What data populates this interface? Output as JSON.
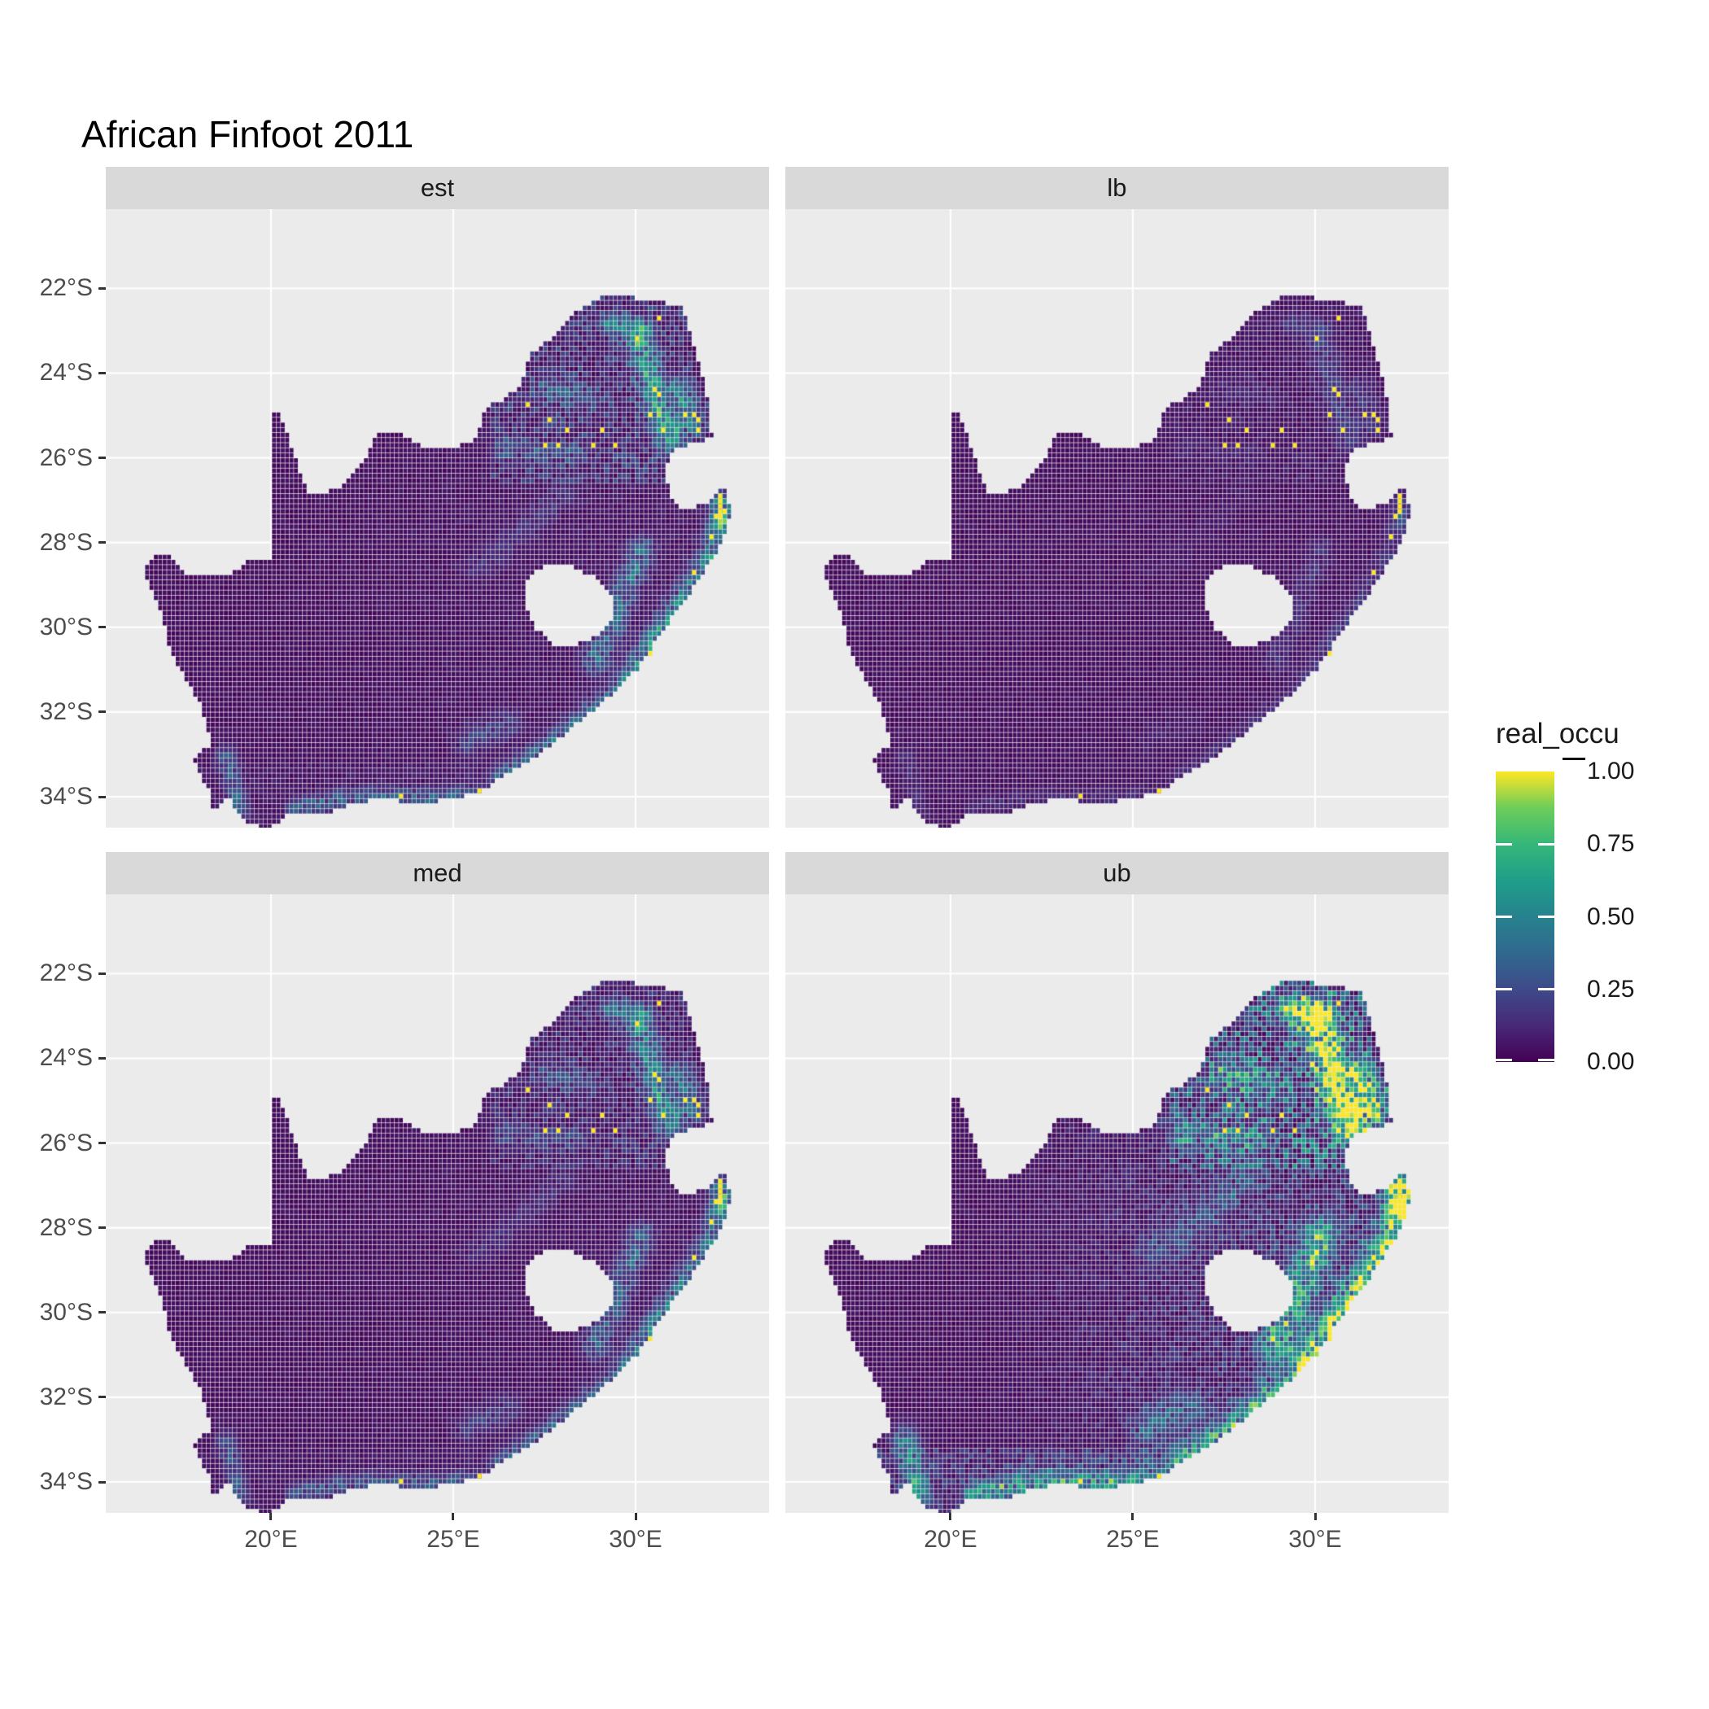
{
  "title": "African Finfoot 2011",
  "legend": {
    "title": "real_occu",
    "labels": [
      "1.00",
      "0.75",
      "0.50",
      "0.25",
      "0.00"
    ],
    "breaks": [
      1.0,
      0.75,
      0.5,
      0.25,
      0.0
    ]
  },
  "facets": [
    {
      "id": "est",
      "label": "est",
      "factor": 1.0,
      "ne": 0.2,
      "east": 0.05,
      "south": 0.06,
      "wmul": 1.0
    },
    {
      "id": "lb",
      "label": "lb",
      "factor": 0.28,
      "ne": 0.05,
      "east": 0.012,
      "south": 0.015,
      "wmul": 1.0
    },
    {
      "id": "med",
      "label": "med",
      "factor": 0.85,
      "ne": 0.14,
      "east": 0.035,
      "south": 0.045,
      "wmul": 1.0
    },
    {
      "id": "ub",
      "label": "ub",
      "factor": 1.65,
      "ne": 0.32,
      "east": 0.3,
      "south": 0.24,
      "wmul": 1.35
    }
  ],
  "axes": {
    "x_ticks": [
      {
        "lon": 20,
        "label": "20°E"
      },
      {
        "lon": 25,
        "label": "25°E"
      },
      {
        "lon": 30,
        "label": "30°E"
      }
    ],
    "y_ticks": [
      {
        "lat": -22,
        "label": "22°S"
      },
      {
        "lat": -24,
        "label": "24°S"
      },
      {
        "lat": -26,
        "label": "26°S"
      },
      {
        "lat": -28,
        "label": "28°S"
      },
      {
        "lat": -30,
        "label": "30°S"
      },
      {
        "lat": -32,
        "label": "32°S"
      },
      {
        "lat": -34,
        "label": "34°S"
      }
    ]
  },
  "colors": {
    "panel_bg": "#EBEBEB",
    "strip_bg": "#D9D9D9",
    "grid": "#FFFFFF",
    "axis_text": "#4D4D4D",
    "strip_text": "#1A1A1A",
    "tick": "#333333",
    "viridis": [
      [
        0.0,
        "#440154"
      ],
      [
        0.125,
        "#482878"
      ],
      [
        0.25,
        "#3E4A89"
      ],
      [
        0.375,
        "#31688E"
      ],
      [
        0.5,
        "#26828E"
      ],
      [
        0.625,
        "#1F9E89"
      ],
      [
        0.75,
        "#35B779"
      ],
      [
        0.875,
        "#6DCD59"
      ],
      [
        1.0,
        "#FDE725"
      ]
    ]
  },
  "chart_data": {
    "type": "heatmap",
    "subtype": "faceted-raster-occupancy-map",
    "title": "African Finfoot 2011",
    "facet_labels": [
      "est",
      "lb",
      "med",
      "ub"
    ],
    "legend_title": "real_occu",
    "value_range": [
      0.0,
      1.0
    ],
    "legend_breaks": [
      0.0,
      0.25,
      0.5,
      0.75,
      1.0
    ],
    "x_axis": {
      "ticks": [
        20,
        25,
        30
      ],
      "labels": [
        "20°E",
        "25°E",
        "30°E"
      ]
    },
    "y_axis": {
      "ticks": [
        -22,
        -24,
        -26,
        -28,
        -30,
        -32,
        -34
      ],
      "labels": [
        "22°S",
        "24°S",
        "26°S",
        "28°S",
        "30°S",
        "32°S",
        "34°S"
      ]
    },
    "lon_range": [
      15.47,
      33.66
    ],
    "lat_range": [
      -34.73,
      -20.13
    ],
    "cell_deg": 0.12,
    "region": "South Africa",
    "outline": [
      [
        16.45,
        -28.63
      ],
      [
        17.05,
        -28.2
      ],
      [
        17.65,
        -28.75
      ],
      [
        18.75,
        -28.8
      ],
      [
        19.5,
        -28.4
      ],
      [
        19.98,
        -28.35
      ],
      [
        19.98,
        -24.82
      ],
      [
        20.25,
        -24.95
      ],
      [
        20.9,
        -26.55
      ],
      [
        21.05,
        -26.9
      ],
      [
        21.85,
        -26.75
      ],
      [
        22.55,
        -26.1
      ],
      [
        22.9,
        -25.45
      ],
      [
        23.65,
        -25.45
      ],
      [
        24.2,
        -25.75
      ],
      [
        25.4,
        -25.7
      ],
      [
        25.65,
        -25.45
      ],
      [
        25.9,
        -24.8
      ],
      [
        26.45,
        -24.6
      ],
      [
        26.85,
        -24.25
      ],
      [
        27.15,
        -23.55
      ],
      [
        27.95,
        -23.0
      ],
      [
        28.35,
        -22.6
      ],
      [
        29.05,
        -22.2
      ],
      [
        29.65,
        -22.15
      ],
      [
        30.3,
        -22.3
      ],
      [
        31.3,
        -22.4
      ],
      [
        31.6,
        -23.3
      ],
      [
        31.95,
        -24.4
      ],
      [
        32.05,
        -25.1
      ],
      [
        32.1,
        -25.55
      ],
      [
        31.4,
        -25.7
      ],
      [
        31.0,
        -25.85
      ],
      [
        30.85,
        -26.25
      ],
      [
        30.9,
        -26.75
      ],
      [
        31.1,
        -27.1
      ],
      [
        31.5,
        -27.25
      ],
      [
        31.95,
        -27.05
      ],
      [
        32.55,
        -26.62
      ],
      [
        32.58,
        -27.4
      ],
      [
        32.35,
        -28.05
      ],
      [
        31.95,
        -28.6
      ],
      [
        31.45,
        -29.25
      ],
      [
        30.75,
        -30.1
      ],
      [
        30.1,
        -30.95
      ],
      [
        29.35,
        -31.6
      ],
      [
        28.45,
        -32.25
      ],
      [
        27.45,
        -32.95
      ],
      [
        26.4,
        -33.5
      ],
      [
        25.65,
        -33.95
      ],
      [
        24.9,
        -34.05
      ],
      [
        24.0,
        -34.2
      ],
      [
        23.2,
        -34.05
      ],
      [
        22.3,
        -34.15
      ],
      [
        21.4,
        -34.45
      ],
      [
        20.5,
        -34.4
      ],
      [
        19.95,
        -34.8
      ],
      [
        19.25,
        -34.55
      ],
      [
        18.85,
        -34.05
      ],
      [
        18.35,
        -34.35
      ],
      [
        18.3,
        -33.85
      ],
      [
        17.85,
        -33.1
      ],
      [
        18.35,
        -32.75
      ],
      [
        18.1,
        -31.9
      ],
      [
        17.25,
        -30.6
      ],
      [
        16.95,
        -29.5
      ]
    ],
    "lesotho_hole": [
      [
        27.05,
        -28.85
      ],
      [
        27.55,
        -28.55
      ],
      [
        28.25,
        -28.55
      ],
      [
        28.9,
        -28.85
      ],
      [
        29.35,
        -29.25
      ],
      [
        29.45,
        -29.65
      ],
      [
        29.1,
        -30.1
      ],
      [
        28.45,
        -30.4
      ],
      [
        27.8,
        -30.45
      ],
      [
        27.3,
        -30.05
      ],
      [
        27.0,
        -29.55
      ]
    ],
    "ridges": [
      {
        "name": "soutpansberg",
        "pts": [
          [
            29.3,
            -22.85
          ],
          [
            30.25,
            -22.95
          ]
        ],
        "s": 0.45,
        "w": 0.22
      },
      {
        "name": "ne-escarpment",
        "pts": [
          [
            30.1,
            -23.3
          ],
          [
            30.45,
            -24.2
          ],
          [
            30.65,
            -24.9
          ],
          [
            30.9,
            -25.5
          ]
        ],
        "s": 0.6,
        "w": 0.3
      },
      {
        "name": "kruger-lowveld",
        "pts": [
          [
            31.2,
            -24.4
          ],
          [
            31.55,
            -25.2
          ]
        ],
        "s": 0.45,
        "w": 0.3
      },
      {
        "name": "maputaland",
        "pts": [
          [
            32.28,
            -26.9
          ],
          [
            32.28,
            -27.45
          ]
        ],
        "s": 0.5,
        "w": 0.16
      },
      {
        "name": "kzn-coast",
        "pts": [
          [
            32.45,
            -27.3
          ],
          [
            32.1,
            -28.3
          ],
          [
            31.4,
            -29.3
          ],
          [
            30.6,
            -30.2
          ],
          [
            30.05,
            -31.0
          ]
        ],
        "s": 0.55,
        "w": 0.3
      },
      {
        "name": "drakensberg",
        "pts": [
          [
            30.2,
            -28.2
          ],
          [
            29.7,
            -29.1
          ],
          [
            29.4,
            -30.0
          ],
          [
            28.9,
            -30.8
          ]
        ],
        "s": 0.4,
        "w": 0.3
      },
      {
        "name": "wild-coast",
        "pts": [
          [
            29.7,
            -31.4
          ],
          [
            28.6,
            -32.2
          ],
          [
            27.5,
            -32.95
          ],
          [
            26.35,
            -33.6
          ]
        ],
        "s": 0.45,
        "w": 0.28
      },
      {
        "name": "garden-route",
        "pts": [
          [
            25.6,
            -33.95
          ],
          [
            24.3,
            -34.05
          ],
          [
            23.1,
            -34.0
          ],
          [
            21.9,
            -34.05
          ],
          [
            20.7,
            -34.3
          ]
        ],
        "s": 0.32,
        "w": 0.22
      },
      {
        "name": "cape-sw",
        "pts": [
          [
            19.15,
            -34.35
          ],
          [
            18.95,
            -33.6
          ],
          [
            18.75,
            -33.0
          ]
        ],
        "s": 0.3,
        "w": 0.22
      },
      {
        "name": "magaliesberg",
        "pts": [
          [
            26.3,
            -25.7
          ],
          [
            27.4,
            -25.9
          ],
          [
            28.4,
            -25.85
          ]
        ],
        "s": 0.18,
        "w": 0.25
      },
      {
        "name": "waterberg",
        "pts": [
          [
            27.6,
            -24.4
          ],
          [
            28.6,
            -24.6
          ]
        ],
        "s": 0.25,
        "w": 0.3
      },
      {
        "name": "vaal",
        "pts": [
          [
            28.1,
            -26.8
          ],
          [
            26.9,
            -27.7
          ],
          [
            25.7,
            -28.6
          ]
        ],
        "s": 0.12,
        "w": 0.3
      },
      {
        "name": "amatola",
        "pts": [
          [
            26.5,
            -32.3
          ],
          [
            25.4,
            -32.7
          ]
        ],
        "s": 0.2,
        "w": 0.3
      }
    ],
    "ne_boost_box": {
      "lon": [
        26.0,
        32.6
      ],
      "lat": [
        -26.6,
        -22.2
      ]
    },
    "occurrence_points": [
      [
        30.6,
        -22.7
      ],
      [
        30.0,
        -23.2
      ],
      [
        30.55,
        -24.35
      ],
      [
        30.62,
        -24.55
      ],
      [
        27.1,
        -24.8
      ],
      [
        30.4,
        -25.0
      ],
      [
        31.4,
        -24.95
      ],
      [
        31.62,
        -24.95
      ],
      [
        31.7,
        -25.15
      ],
      [
        31.68,
        -25.32
      ],
      [
        27.6,
        -25.1
      ],
      [
        28.1,
        -25.3
      ],
      [
        29.1,
        -25.4
      ],
      [
        30.75,
        -25.4
      ],
      [
        27.5,
        -25.7
      ],
      [
        27.85,
        -25.7
      ],
      [
        28.8,
        -25.65
      ],
      [
        29.45,
        -25.75
      ],
      [
        32.15,
        -27.35
      ],
      [
        32.1,
        -27.85
      ],
      [
        31.65,
        -28.65
      ],
      [
        30.35,
        -30.65
      ],
      [
        25.7,
        -33.85
      ],
      [
        23.55,
        -34.0
      ]
    ],
    "occurrence_line": {
      "lon": 32.28,
      "lat_from": -26.95,
      "lat_to": -27.42
    }
  },
  "layout_note": "2x2 facet grid, shared axes, right colourbar legend"
}
